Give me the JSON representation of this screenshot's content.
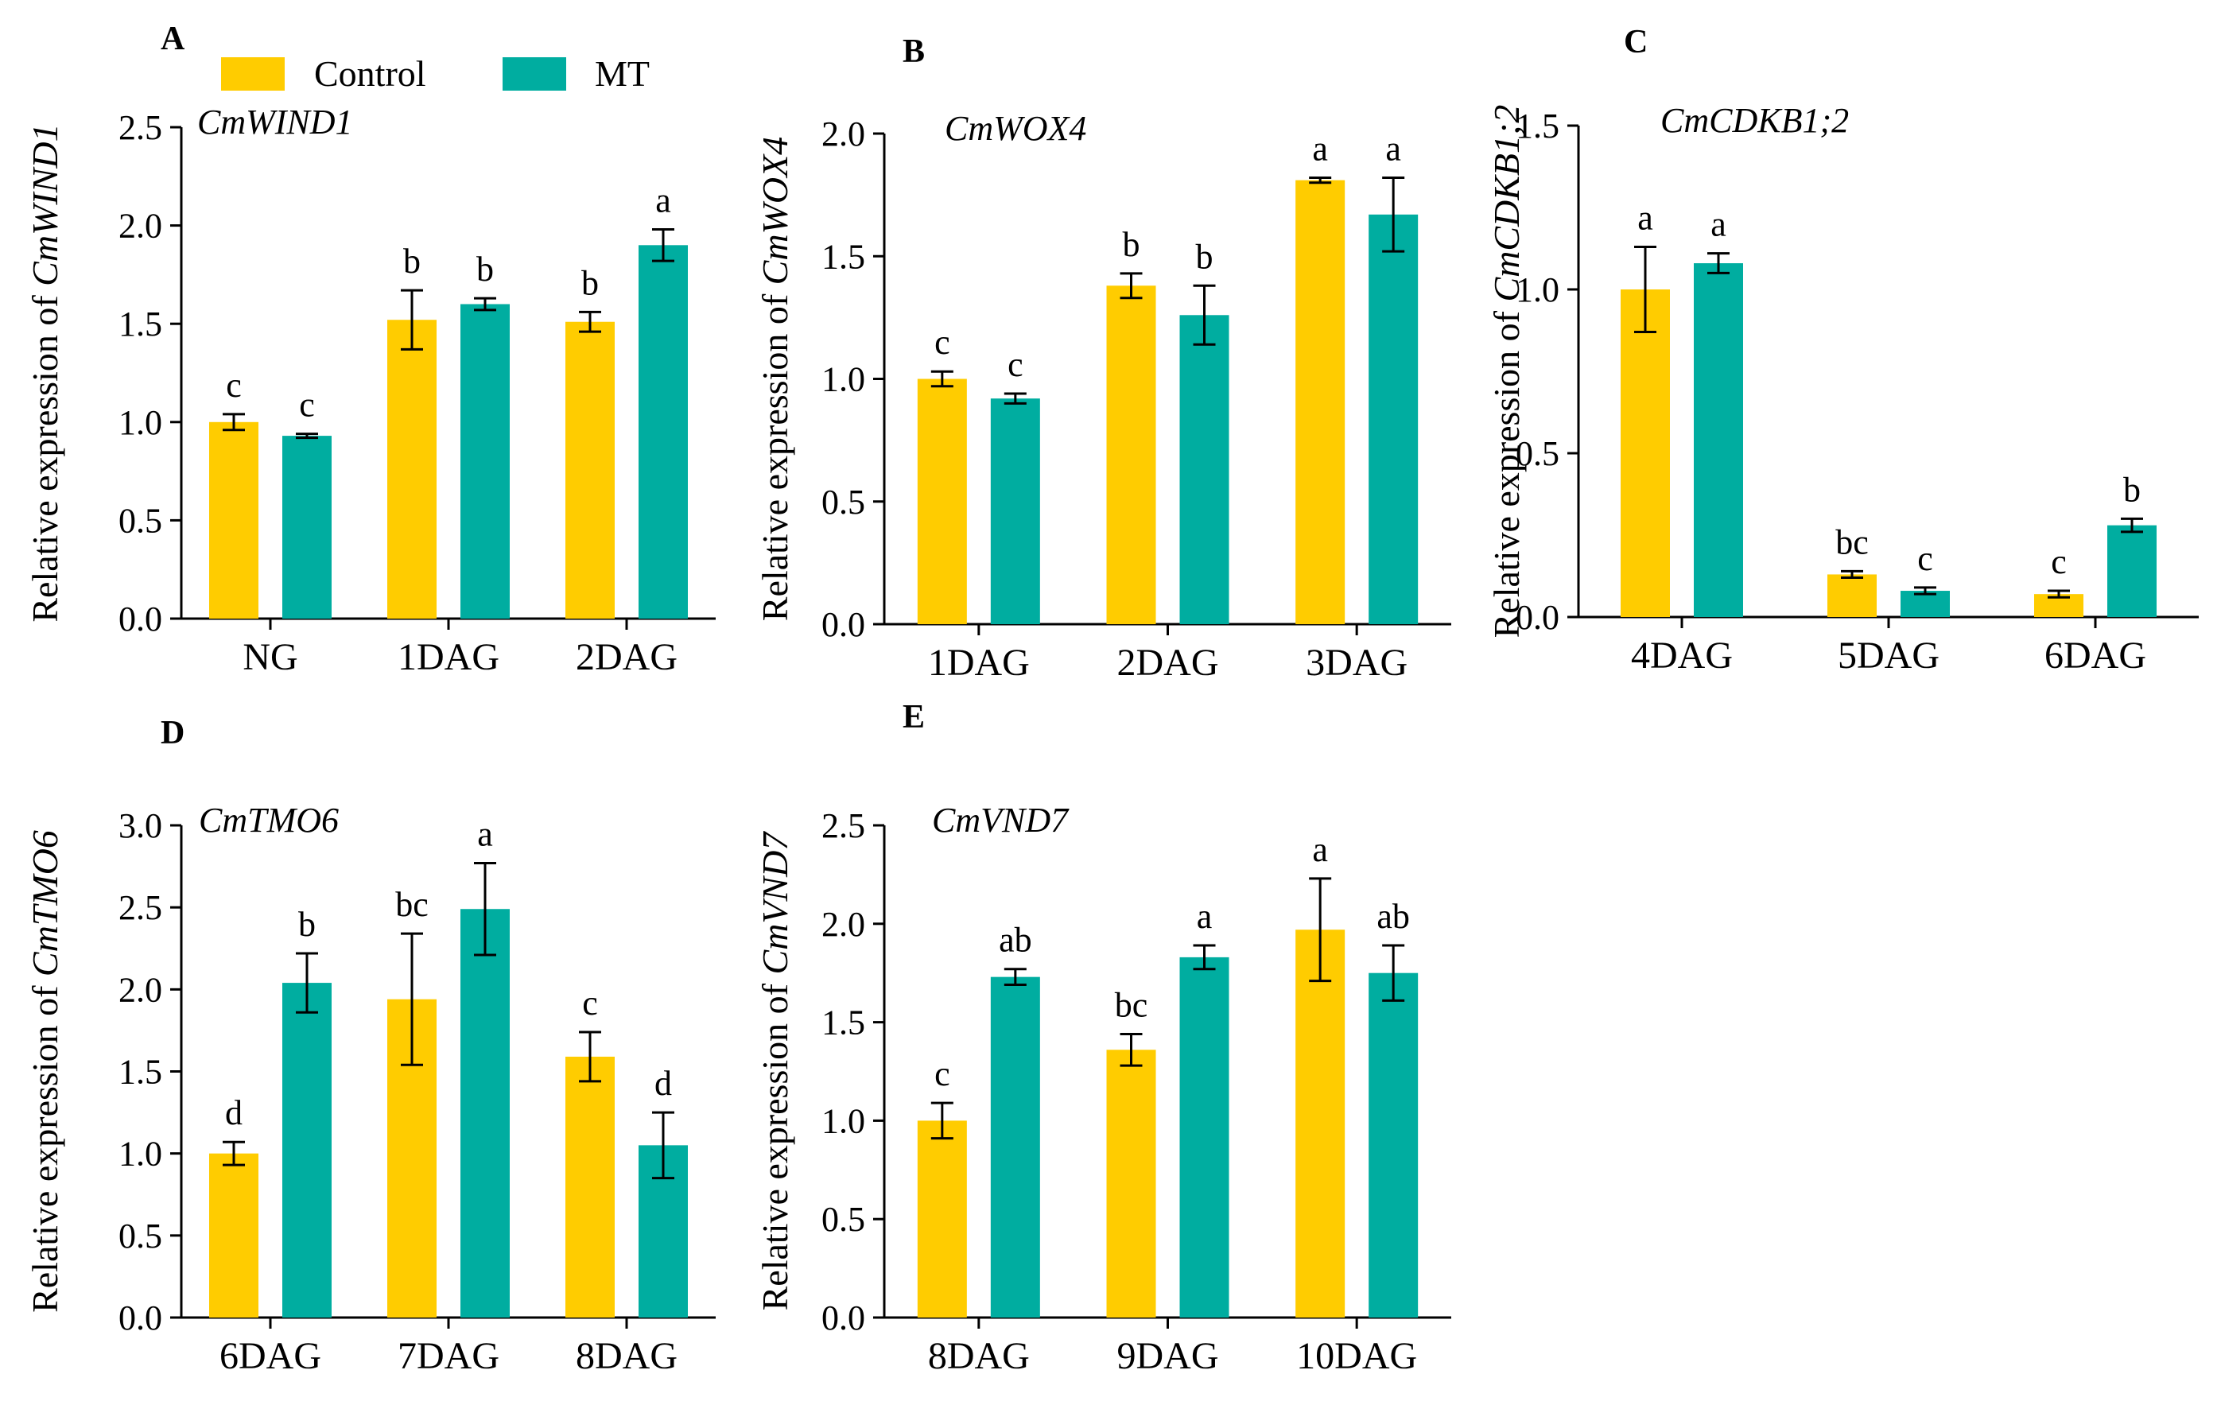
{
  "legend": {
    "items": [
      {
        "label": "Control",
        "color": "#FFCC00"
      },
      {
        "label": "MT",
        "color": "#00ADA0"
      }
    ]
  },
  "chart_data": [
    {
      "panel": "A",
      "type": "bar",
      "gene": "CmWIND1",
      "ylabel_prefix": "Relative expression of ",
      "ylabel_gene": "CmWIND1",
      "categories": [
        "NG",
        "1DAG",
        "2DAG"
      ],
      "ylim": [
        0,
        2.5
      ],
      "yticks": [
        "0.0",
        "0.5",
        "1.0",
        "1.5",
        "2.0",
        "2.5"
      ],
      "series": [
        {
          "name": "Control",
          "values": [
            1.0,
            1.52,
            1.51
          ],
          "errors": [
            0.04,
            0.15,
            0.05
          ],
          "letters": [
            "c",
            "b",
            "b"
          ]
        },
        {
          "name": "MT",
          "values": [
            0.93,
            1.6,
            1.9
          ],
          "errors": [
            0.01,
            0.03,
            0.08
          ],
          "letters": [
            "c",
            "b",
            "a"
          ]
        }
      ]
    },
    {
      "panel": "B",
      "type": "bar",
      "gene": "CmWOX4",
      "ylabel_prefix": "Relative expression of ",
      "ylabel_gene": "CmWOX4",
      "categories": [
        "1DAG",
        "2DAG",
        "3DAG"
      ],
      "ylim": [
        0,
        2.0
      ],
      "yticks": [
        "0.0",
        "0.5",
        "1.0",
        "1.5",
        "2.0"
      ],
      "series": [
        {
          "name": "Control",
          "values": [
            1.0,
            1.38,
            1.81
          ],
          "errors": [
            0.03,
            0.05,
            0.01
          ],
          "letters": [
            "c",
            "b",
            "a"
          ]
        },
        {
          "name": "MT",
          "values": [
            0.92,
            1.26,
            1.67
          ],
          "errors": [
            0.02,
            0.12,
            0.15
          ],
          "letters": [
            "c",
            "b",
            "a"
          ]
        }
      ]
    },
    {
      "panel": "C",
      "type": "bar",
      "gene": "CmCDKB1;2",
      "ylabel_prefix": "Relative expression of ",
      "ylabel_gene": "CmCDKB1;2",
      "categories": [
        "4DAG",
        "5DAG",
        "6DAG"
      ],
      "ylim": [
        0,
        1.5
      ],
      "yticks": [
        "0.0",
        "0.5",
        "1.0",
        "1.5"
      ],
      "series": [
        {
          "name": "Control",
          "values": [
            1.0,
            0.13,
            0.07
          ],
          "errors": [
            0.13,
            0.01,
            0.01
          ],
          "letters": [
            "a",
            "bc",
            "c"
          ]
        },
        {
          "name": "MT",
          "values": [
            1.08,
            0.08,
            0.28
          ],
          "errors": [
            0.03,
            0.01,
            0.02
          ],
          "letters": [
            "a",
            "c",
            "b"
          ]
        }
      ]
    },
    {
      "panel": "D",
      "type": "bar",
      "gene": "CmTMO6",
      "ylabel_prefix": "Relative expression of ",
      "ylabel_gene": "CmTMO6",
      "categories": [
        "6DAG",
        "7DAG",
        "8DAG"
      ],
      "ylim": [
        0,
        3.0
      ],
      "yticks": [
        "0.0",
        "0.5",
        "1.0",
        "1.5",
        "2.0",
        "2.5",
        "3.0"
      ],
      "series": [
        {
          "name": "Control",
          "values": [
            1.0,
            1.94,
            1.59
          ],
          "errors": [
            0.07,
            0.4,
            0.15
          ],
          "letters": [
            "d",
            "bc",
            "c"
          ]
        },
        {
          "name": "MT",
          "values": [
            2.04,
            2.49,
            1.05
          ],
          "errors": [
            0.18,
            0.28,
            0.2
          ],
          "letters": [
            "b",
            "a",
            "d"
          ]
        }
      ]
    },
    {
      "panel": "E",
      "type": "bar",
      "gene": "CmVND7",
      "ylabel_prefix": "Relative expression of ",
      "ylabel_gene": "CmVND7",
      "categories": [
        "8DAG",
        "9DAG",
        "10DAG"
      ],
      "ylim": [
        0,
        2.5
      ],
      "yticks": [
        "0.0",
        "0.5",
        "1.0",
        "1.5",
        "2.0",
        "2.5"
      ],
      "series": [
        {
          "name": "Control",
          "values": [
            1.0,
            1.36,
            1.97
          ],
          "errors": [
            0.09,
            0.08,
            0.26
          ],
          "letters": [
            "c",
            "bc",
            "a"
          ]
        },
        {
          "name": "MT",
          "values": [
            1.73,
            1.83,
            1.75
          ],
          "errors": [
            0.04,
            0.06,
            0.14
          ],
          "letters": [
            "ab",
            "a",
            "ab"
          ]
        }
      ]
    }
  ]
}
